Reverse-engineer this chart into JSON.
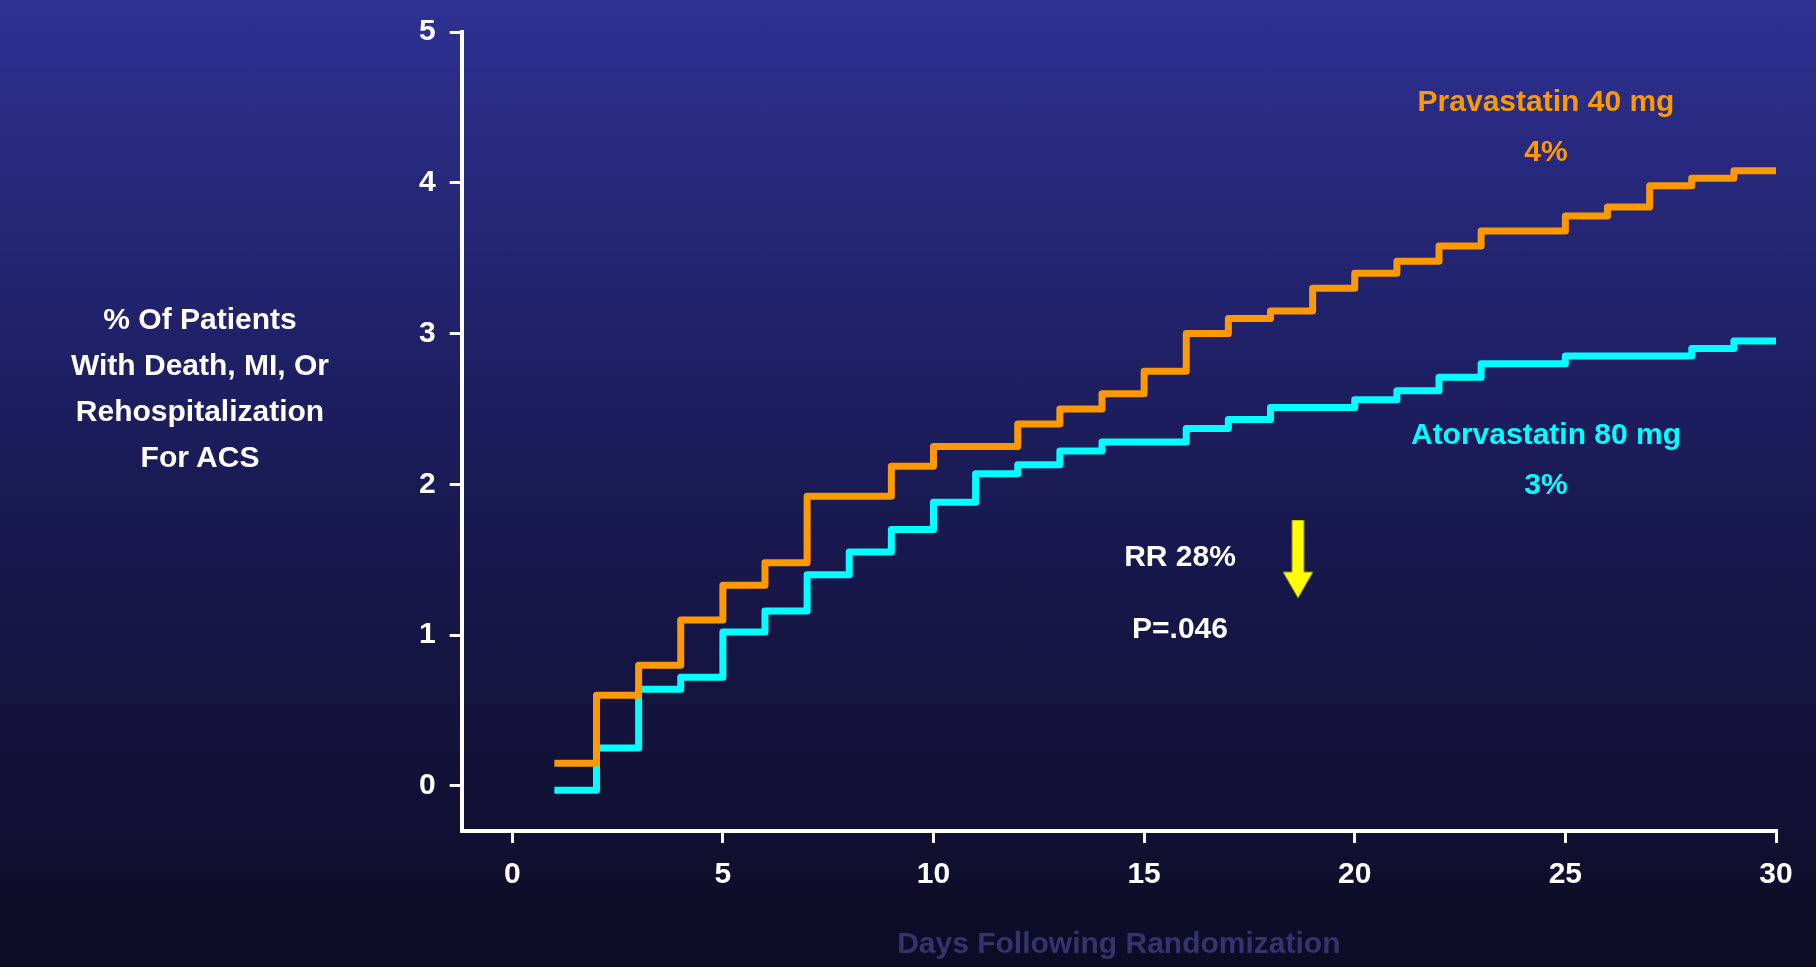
{
  "chart_data": {
    "type": "step",
    "xlabel": "Days Following Randomization",
    "ylabel": "% Of Patients\nWith Death, MI, Or\nRehospitalization\nFor ACS",
    "x": [
      1,
      2,
      3,
      4,
      5,
      6,
      7,
      8,
      9,
      10,
      11,
      12,
      13,
      14,
      15,
      16,
      17,
      18,
      19,
      20,
      21,
      22,
      23,
      24,
      25,
      26,
      27,
      28,
      29,
      30
    ],
    "series": [
      {
        "name": "Pravastatin 40 mg",
        "color": "#ff9900",
        "values": [
          0.15,
          0.6,
          0.8,
          1.1,
          1.33,
          1.48,
          1.92,
          1.92,
          2.12,
          2.25,
          2.25,
          2.4,
          2.5,
          2.6,
          2.75,
          3.0,
          3.1,
          3.15,
          3.3,
          3.4,
          3.48,
          3.58,
          3.68,
          3.68,
          3.78,
          3.84,
          3.98,
          4.03,
          4.08,
          4.1
        ]
      },
      {
        "name": "Atorvastatin 80 mg",
        "color": "#00ffff",
        "values": [
          -0.03,
          0.25,
          0.64,
          0.72,
          1.02,
          1.16,
          1.4,
          1.55,
          1.7,
          1.88,
          2.07,
          2.13,
          2.22,
          2.28,
          2.28,
          2.37,
          2.43,
          2.51,
          2.51,
          2.56,
          2.62,
          2.71,
          2.8,
          2.8,
          2.85,
          2.85,
          2.85,
          2.9,
          2.95,
          2.95
        ]
      }
    ],
    "xlim": [
      -1.2,
      30
    ],
    "xticks": [
      0,
      5,
      10,
      15,
      20,
      25,
      30
    ],
    "ylim": [
      -0.3,
      5
    ],
    "yticks": [
      0,
      1,
      2,
      3,
      4,
      5
    ],
    "grid": false,
    "legend": false,
    "annotations": [
      "4%",
      "3%",
      "RR 28%",
      "P=.046"
    ]
  }
}
